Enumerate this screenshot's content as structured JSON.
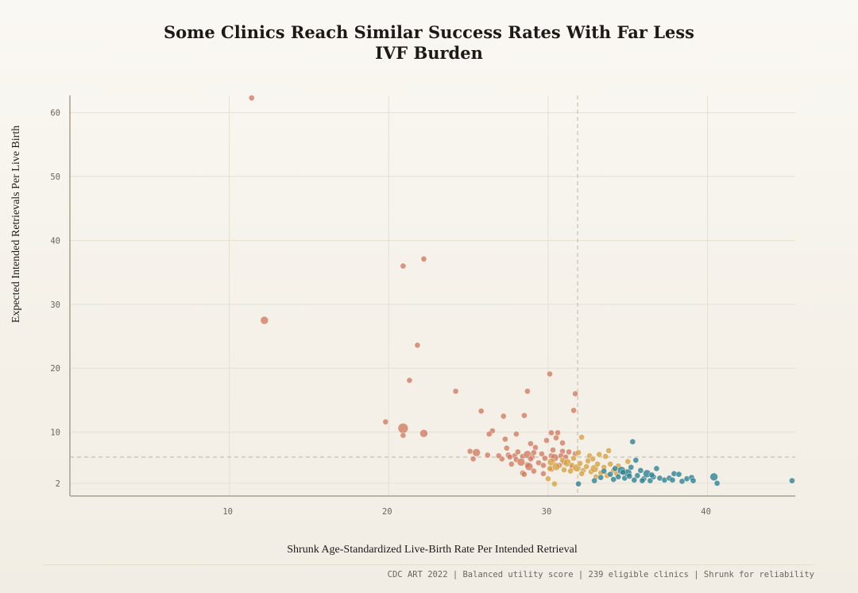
{
  "chart_data": {
    "type": "scatter",
    "title": "Some Clinics Reach Similar Success Rates With Far Less IVF Burden",
    "title_lines": [
      "Some Clinics Reach Similar Success Rates With Far Less",
      "IVF Burden"
    ],
    "xlabel": "Shrunk Age-Standardized Live-Birth Rate Per Intended Retrieval",
    "ylabel": "Expected Intended Retrievals Per Live Birth",
    "xlim": [
      0,
      45.5
    ],
    "ylim": [
      0,
      62.7
    ],
    "x_ticks": [
      10,
      20,
      30,
      40
    ],
    "y_ticks": [
      2,
      10,
      20,
      30,
      40,
      50,
      60
    ],
    "grid": true,
    "reference_lines": {
      "x_median": 31.85,
      "y_median": 6.1
    },
    "groups": {
      "low": {
        "color": "#cf7a5f"
      },
      "mid": {
        "color": "#d3a244"
      },
      "high": {
        "color": "#2b7f8e"
      }
    },
    "points": [
      {
        "x": 11.4,
        "y": 62.3,
        "s": 1,
        "g": "low"
      },
      {
        "x": 12.2,
        "y": 27.5,
        "s": 2,
        "g": "low"
      },
      {
        "x": 20.9,
        "y": 36.0,
        "s": 1,
        "g": "low"
      },
      {
        "x": 22.2,
        "y": 37.1,
        "s": 1,
        "g": "low"
      },
      {
        "x": 21.8,
        "y": 23.6,
        "s": 1,
        "g": "low"
      },
      {
        "x": 21.3,
        "y": 18.1,
        "s": 1,
        "g": "low"
      },
      {
        "x": 24.2,
        "y": 16.4,
        "s": 1,
        "g": "low"
      },
      {
        "x": 28.7,
        "y": 16.4,
        "s": 1,
        "g": "low"
      },
      {
        "x": 30.1,
        "y": 19.1,
        "s": 1,
        "g": "low"
      },
      {
        "x": 31.7,
        "y": 16.0,
        "s": 1,
        "g": "low"
      },
      {
        "x": 31.6,
        "y": 13.4,
        "s": 1,
        "g": "low"
      },
      {
        "x": 25.8,
        "y": 13.3,
        "s": 1,
        "g": "low"
      },
      {
        "x": 27.2,
        "y": 12.5,
        "s": 1,
        "g": "low"
      },
      {
        "x": 28.5,
        "y": 12.6,
        "s": 1,
        "g": "low"
      },
      {
        "x": 19.8,
        "y": 11.6,
        "s": 1,
        "g": "low"
      },
      {
        "x": 20.9,
        "y": 10.6,
        "s": 3,
        "g": "low"
      },
      {
        "x": 20.9,
        "y": 9.5,
        "s": 1,
        "g": "low"
      },
      {
        "x": 22.2,
        "y": 9.8,
        "s": 2,
        "g": "low"
      },
      {
        "x": 26.5,
        "y": 10.2,
        "s": 1,
        "g": "low"
      },
      {
        "x": 26.3,
        "y": 9.7,
        "s": 1,
        "g": "low"
      },
      {
        "x": 28.0,
        "y": 9.7,
        "s": 1,
        "g": "low"
      },
      {
        "x": 30.2,
        "y": 9.9,
        "s": 1,
        "g": "low"
      },
      {
        "x": 30.6,
        "y": 9.9,
        "s": 1,
        "g": "low"
      },
      {
        "x": 30.5,
        "y": 9.1,
        "s": 1,
        "g": "low"
      },
      {
        "x": 29.9,
        "y": 8.7,
        "s": 1,
        "g": "low"
      },
      {
        "x": 27.3,
        "y": 8.9,
        "s": 1,
        "g": "low"
      },
      {
        "x": 30.9,
        "y": 8.3,
        "s": 1,
        "g": "low"
      },
      {
        "x": 28.9,
        "y": 8.2,
        "s": 1,
        "g": "low"
      },
      {
        "x": 25.1,
        "y": 7.0,
        "s": 1,
        "g": "low"
      },
      {
        "x": 25.5,
        "y": 6.8,
        "s": 2,
        "g": "low"
      },
      {
        "x": 27.4,
        "y": 7.5,
        "s": 1,
        "g": "low"
      },
      {
        "x": 29.2,
        "y": 7.6,
        "s": 1,
        "g": "low"
      },
      {
        "x": 30.3,
        "y": 7.2,
        "s": 1,
        "g": "low"
      },
      {
        "x": 30.9,
        "y": 7.0,
        "s": 1,
        "g": "low"
      },
      {
        "x": 26.2,
        "y": 6.4,
        "s": 1,
        "g": "low"
      },
      {
        "x": 25.3,
        "y": 5.8,
        "s": 1,
        "g": "low"
      },
      {
        "x": 27.1,
        "y": 5.8,
        "s": 1,
        "g": "low"
      },
      {
        "x": 27.5,
        "y": 6.4,
        "s": 1,
        "g": "low"
      },
      {
        "x": 27.9,
        "y": 6.3,
        "s": 1,
        "g": "low"
      },
      {
        "x": 28.1,
        "y": 6.9,
        "s": 1,
        "g": "low"
      },
      {
        "x": 28.4,
        "y": 6.2,
        "s": 1,
        "g": "low"
      },
      {
        "x": 28.7,
        "y": 6.5,
        "s": 2,
        "g": "low"
      },
      {
        "x": 29.0,
        "y": 6.1,
        "s": 1,
        "g": "low"
      },
      {
        "x": 29.1,
        "y": 6.8,
        "s": 1,
        "g": "low"
      },
      {
        "x": 29.6,
        "y": 6.6,
        "s": 1,
        "g": "low"
      },
      {
        "x": 29.8,
        "y": 5.9,
        "s": 1,
        "g": "low"
      },
      {
        "x": 30.2,
        "y": 6.3,
        "s": 1,
        "g": "low"
      },
      {
        "x": 30.4,
        "y": 6.0,
        "s": 2,
        "g": "low"
      },
      {
        "x": 30.8,
        "y": 6.3,
        "s": 1,
        "g": "low"
      },
      {
        "x": 31.1,
        "y": 6.1,
        "s": 1,
        "g": "low"
      },
      {
        "x": 28.0,
        "y": 5.7,
        "s": 1,
        "g": "low"
      },
      {
        "x": 28.3,
        "y": 5.3,
        "s": 2,
        "g": "low"
      },
      {
        "x": 28.7,
        "y": 4.9,
        "s": 1,
        "g": "low"
      },
      {
        "x": 28.8,
        "y": 4.6,
        "s": 2,
        "g": "low"
      },
      {
        "x": 29.4,
        "y": 5.2,
        "s": 1,
        "g": "low"
      },
      {
        "x": 29.7,
        "y": 4.8,
        "s": 1,
        "g": "low"
      },
      {
        "x": 27.7,
        "y": 5.0,
        "s": 1,
        "g": "low"
      },
      {
        "x": 28.9,
        "y": 5.8,
        "s": 1,
        "g": "low"
      },
      {
        "x": 28.4,
        "y": 3.6,
        "s": 1,
        "g": "low"
      },
      {
        "x": 28.5,
        "y": 3.4,
        "s": 1,
        "g": "low"
      },
      {
        "x": 29.1,
        "y": 3.9,
        "s": 1,
        "g": "low"
      },
      {
        "x": 29.7,
        "y": 3.5,
        "s": 1,
        "g": "low"
      },
      {
        "x": 30.2,
        "y": 4.2,
        "s": 1,
        "g": "low"
      },
      {
        "x": 30.7,
        "y": 4.8,
        "s": 1,
        "g": "low"
      },
      {
        "x": 31.0,
        "y": 5.3,
        "s": 1,
        "g": "low"
      },
      {
        "x": 31.5,
        "y": 4.5,
        "s": 1,
        "g": "low"
      },
      {
        "x": 31.7,
        "y": 6.6,
        "s": 1,
        "g": "low"
      },
      {
        "x": 31.3,
        "y": 6.9,
        "s": 1,
        "g": "low"
      },
      {
        "x": 27.6,
        "y": 6.1,
        "s": 1,
        "g": "low"
      },
      {
        "x": 26.9,
        "y": 6.3,
        "s": 1,
        "g": "low"
      },
      {
        "x": 32.1,
        "y": 9.2,
        "s": 1,
        "g": "mid"
      },
      {
        "x": 31.9,
        "y": 6.8,
        "s": 1,
        "g": "mid"
      },
      {
        "x": 31.6,
        "y": 5.9,
        "s": 1,
        "g": "mid"
      },
      {
        "x": 30.2,
        "y": 5.3,
        "s": 2,
        "g": "mid"
      },
      {
        "x": 30.5,
        "y": 4.6,
        "s": 2,
        "g": "mid"
      },
      {
        "x": 30.1,
        "y": 4.3,
        "s": 1,
        "g": "mid"
      },
      {
        "x": 30.9,
        "y": 5.6,
        "s": 1,
        "g": "mid"
      },
      {
        "x": 31.2,
        "y": 5.2,
        "s": 2,
        "g": "mid"
      },
      {
        "x": 31.5,
        "y": 4.8,
        "s": 1,
        "g": "mid"
      },
      {
        "x": 31.8,
        "y": 4.4,
        "s": 2,
        "g": "mid"
      },
      {
        "x": 32.0,
        "y": 5.1,
        "s": 1,
        "g": "mid"
      },
      {
        "x": 32.2,
        "y": 4.0,
        "s": 1,
        "g": "mid"
      },
      {
        "x": 32.4,
        "y": 4.6,
        "s": 1,
        "g": "mid"
      },
      {
        "x": 32.5,
        "y": 5.5,
        "s": 1,
        "g": "mid"
      },
      {
        "x": 32.7,
        "y": 3.8,
        "s": 1,
        "g": "mid"
      },
      {
        "x": 32.9,
        "y": 4.3,
        "s": 2,
        "g": "mid"
      },
      {
        "x": 33.1,
        "y": 5.0,
        "s": 1,
        "g": "mid"
      },
      {
        "x": 33.3,
        "y": 3.6,
        "s": 1,
        "g": "mid"
      },
      {
        "x": 33.5,
        "y": 4.5,
        "s": 1,
        "g": "mid"
      },
      {
        "x": 33.6,
        "y": 6.2,
        "s": 1,
        "g": "mid"
      },
      {
        "x": 33.9,
        "y": 5.0,
        "s": 1,
        "g": "mid"
      },
      {
        "x": 34.1,
        "y": 4.0,
        "s": 1,
        "g": "mid"
      },
      {
        "x": 34.3,
        "y": 3.5,
        "s": 1,
        "g": "mid"
      },
      {
        "x": 33.8,
        "y": 7.1,
        "s": 1,
        "g": "mid"
      },
      {
        "x": 33.2,
        "y": 6.5,
        "s": 1,
        "g": "mid"
      },
      {
        "x": 32.6,
        "y": 6.3,
        "s": 1,
        "g": "mid"
      },
      {
        "x": 31.4,
        "y": 3.9,
        "s": 1,
        "g": "mid"
      },
      {
        "x": 30.0,
        "y": 2.7,
        "s": 1,
        "g": "mid"
      },
      {
        "x": 30.4,
        "y": 1.9,
        "s": 1,
        "g": "mid"
      },
      {
        "x": 32.1,
        "y": 3.5,
        "s": 1,
        "g": "mid"
      },
      {
        "x": 33.0,
        "y": 3.0,
        "s": 1,
        "g": "mid"
      },
      {
        "x": 33.7,
        "y": 3.2,
        "s": 1,
        "g": "mid"
      },
      {
        "x": 34.4,
        "y": 4.7,
        "s": 1,
        "g": "mid"
      },
      {
        "x": 35.0,
        "y": 5.4,
        "s": 1,
        "g": "mid"
      },
      {
        "x": 34.8,
        "y": 3.9,
        "s": 1,
        "g": "mid"
      },
      {
        "x": 31.0,
        "y": 4.1,
        "s": 1,
        "g": "mid"
      },
      {
        "x": 32.8,
        "y": 5.8,
        "s": 1,
        "g": "mid"
      },
      {
        "x": 31.9,
        "y": 1.9,
        "s": 1,
        "g": "high"
      },
      {
        "x": 35.3,
        "y": 8.5,
        "s": 1,
        "g": "high"
      },
      {
        "x": 33.5,
        "y": 3.9,
        "s": 1,
        "g": "high"
      },
      {
        "x": 33.9,
        "y": 3.4,
        "s": 1,
        "g": "high"
      },
      {
        "x": 34.2,
        "y": 4.3,
        "s": 1,
        "g": "high"
      },
      {
        "x": 34.4,
        "y": 3.0,
        "s": 1,
        "g": "high"
      },
      {
        "x": 34.6,
        "y": 4.0,
        "s": 2,
        "g": "high"
      },
      {
        "x": 34.8,
        "y": 2.8,
        "s": 1,
        "g": "high"
      },
      {
        "x": 35.0,
        "y": 3.6,
        "s": 2,
        "g": "high"
      },
      {
        "x": 35.2,
        "y": 4.5,
        "s": 1,
        "g": "high"
      },
      {
        "x": 35.4,
        "y": 2.5,
        "s": 1,
        "g": "high"
      },
      {
        "x": 35.5,
        "y": 5.6,
        "s": 1,
        "g": "high"
      },
      {
        "x": 35.6,
        "y": 3.2,
        "s": 1,
        "g": "high"
      },
      {
        "x": 35.8,
        "y": 4.0,
        "s": 1,
        "g": "high"
      },
      {
        "x": 36.0,
        "y": 2.7,
        "s": 1,
        "g": "high"
      },
      {
        "x": 36.2,
        "y": 3.5,
        "s": 2,
        "g": "high"
      },
      {
        "x": 36.4,
        "y": 2.4,
        "s": 1,
        "g": "high"
      },
      {
        "x": 36.6,
        "y": 3.0,
        "s": 1,
        "g": "high"
      },
      {
        "x": 36.8,
        "y": 4.3,
        "s": 1,
        "g": "high"
      },
      {
        "x": 37.0,
        "y": 2.8,
        "s": 1,
        "g": "high"
      },
      {
        "x": 37.3,
        "y": 2.5,
        "s": 1,
        "g": "high"
      },
      {
        "x": 37.6,
        "y": 2.8,
        "s": 1,
        "g": "high"
      },
      {
        "x": 37.9,
        "y": 3.5,
        "s": 1,
        "g": "high"
      },
      {
        "x": 38.2,
        "y": 3.4,
        "s": 1,
        "g": "high"
      },
      {
        "x": 38.4,
        "y": 2.3,
        "s": 1,
        "g": "high"
      },
      {
        "x": 38.7,
        "y": 2.7,
        "s": 1,
        "g": "high"
      },
      {
        "x": 39.0,
        "y": 2.9,
        "s": 1,
        "g": "high"
      },
      {
        "x": 39.1,
        "y": 2.4,
        "s": 1,
        "g": "high"
      },
      {
        "x": 37.8,
        "y": 2.5,
        "s": 1,
        "g": "high"
      },
      {
        "x": 36.5,
        "y": 3.3,
        "s": 1,
        "g": "high"
      },
      {
        "x": 35.1,
        "y": 3.1,
        "s": 1,
        "g": "high"
      },
      {
        "x": 34.1,
        "y": 2.6,
        "s": 1,
        "g": "high"
      },
      {
        "x": 33.3,
        "y": 2.9,
        "s": 1,
        "g": "high"
      },
      {
        "x": 32.9,
        "y": 2.4,
        "s": 1,
        "g": "high"
      },
      {
        "x": 34.7,
        "y": 3.7,
        "s": 1,
        "g": "high"
      },
      {
        "x": 35.9,
        "y": 2.4,
        "s": 1,
        "g": "high"
      },
      {
        "x": 40.4,
        "y": 3.0,
        "s": 2,
        "g": "high"
      },
      {
        "x": 40.6,
        "y": 2.0,
        "s": 1,
        "g": "high"
      },
      {
        "x": 45.3,
        "y": 2.4,
        "s": 1,
        "g": "high"
      }
    ]
  },
  "footer": {
    "caption": "CDC ART 2022 | Balanced utility score | 239 eligible clinics | Shrunk for reliability"
  }
}
